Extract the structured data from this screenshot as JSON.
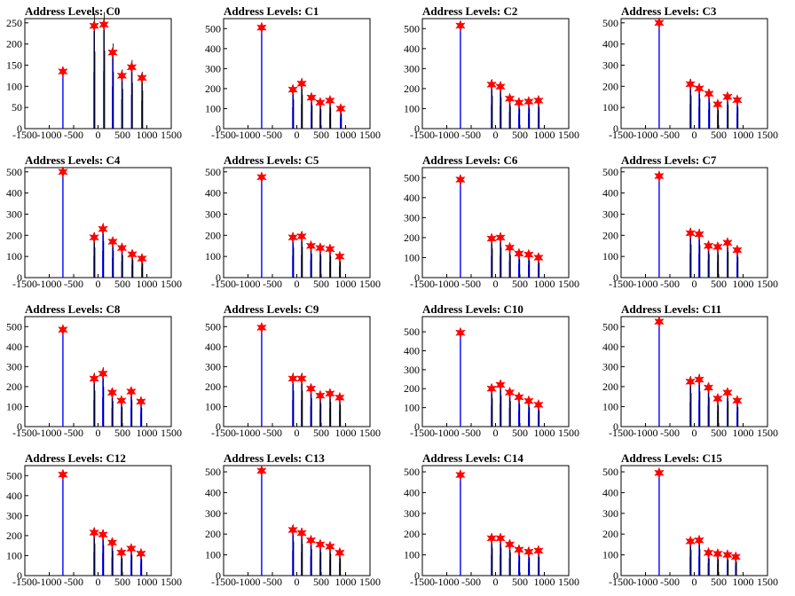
{
  "figure": {
    "background": "#ffffff",
    "colors": {
      "bar": "#0000ff",
      "trace": "#000000",
      "marker": "#ff0000",
      "axis": "#000000"
    },
    "marker_icon": "red-star-marker"
  },
  "chart_data": [
    {
      "type": "bar",
      "title": "Address Levels: C0",
      "xlim": [
        -1500,
        1500
      ],
      "ylim": [
        0,
        260
      ],
      "xticks": [
        -1500,
        -1000,
        -500,
        0,
        500,
        1000,
        1500
      ],
      "xtick_labels": [
        "-1500",
        "-1000",
        "-500",
        "0",
        "500",
        "1000",
        "1500"
      ],
      "yticks": [
        0,
        50,
        100,
        150,
        200,
        250
      ],
      "ytick_labels": [
        "0",
        "50",
        "100",
        "150",
        "200",
        "250"
      ],
      "peaks": [
        {
          "x": -720,
          "y": 135
        },
        {
          "x": -80,
          "y": 243
        },
        {
          "x": 120,
          "y": 246
        },
        {
          "x": 300,
          "y": 180
        },
        {
          "x": 490,
          "y": 125
        },
        {
          "x": 690,
          "y": 145
        },
        {
          "x": 900,
          "y": 120
        }
      ]
    },
    {
      "type": "bar",
      "title": "Address Levels: C1",
      "xlim": [
        -1500,
        1500
      ],
      "ylim": [
        0,
        550
      ],
      "xticks": [
        -1500,
        -1000,
        -500,
        0,
        500,
        1000,
        1500
      ],
      "xtick_labels": [
        "-1500",
        "-1000",
        "-500",
        "0",
        "500",
        "1000",
        "1500"
      ],
      "yticks": [
        0,
        100,
        200,
        300,
        400,
        500
      ],
      "ytick_labels": [
        "0",
        "100",
        "200",
        "300",
        "400",
        "500"
      ],
      "peaks": [
        {
          "x": -720,
          "y": 505
        },
        {
          "x": -80,
          "y": 195
        },
        {
          "x": 100,
          "y": 225
        },
        {
          "x": 300,
          "y": 155
        },
        {
          "x": 480,
          "y": 130
        },
        {
          "x": 680,
          "y": 140
        },
        {
          "x": 900,
          "y": 100
        }
      ]
    },
    {
      "type": "bar",
      "title": "Address Levels: C2",
      "xlim": [
        -1500,
        1500
      ],
      "ylim": [
        0,
        550
      ],
      "xticks": [
        -1500,
        -1000,
        -500,
        0,
        500,
        1000,
        1500
      ],
      "xtick_labels": [
        "-1500",
        "-1000",
        "-500",
        "0",
        "500",
        "1000",
        "1500"
      ],
      "yticks": [
        0,
        100,
        200,
        300,
        400,
        500
      ],
      "ytick_labels": [
        "0",
        "100",
        "200",
        "300",
        "400",
        "500"
      ],
      "peaks": [
        {
          "x": -720,
          "y": 515
        },
        {
          "x": -80,
          "y": 220
        },
        {
          "x": 100,
          "y": 210
        },
        {
          "x": 290,
          "y": 150
        },
        {
          "x": 480,
          "y": 130
        },
        {
          "x": 680,
          "y": 135
        },
        {
          "x": 880,
          "y": 140
        }
      ]
    },
    {
      "type": "bar",
      "title": "Address Levels: C3",
      "xlim": [
        -1500,
        1500
      ],
      "ylim": [
        0,
        520
      ],
      "xticks": [
        -1500,
        -1000,
        -500,
        0,
        500,
        1000,
        1500
      ],
      "xtick_labels": [
        "-1500",
        "-1000",
        "-500",
        "0",
        "500",
        "1000",
        "1500"
      ],
      "yticks": [
        0,
        100,
        200,
        300,
        400,
        500
      ],
      "ytick_labels": [
        "0",
        "100",
        "200",
        "300",
        "400",
        "500"
      ],
      "peaks": [
        {
          "x": -720,
          "y": 500
        },
        {
          "x": -80,
          "y": 210
        },
        {
          "x": 100,
          "y": 190
        },
        {
          "x": 300,
          "y": 165
        },
        {
          "x": 480,
          "y": 115
        },
        {
          "x": 680,
          "y": 150
        },
        {
          "x": 880,
          "y": 135
        }
      ]
    },
    {
      "type": "bar",
      "title": "Address Levels: C4",
      "xlim": [
        -1500,
        1500
      ],
      "ylim": [
        0,
        520
      ],
      "xticks": [
        -1500,
        -1000,
        -500,
        0,
        500,
        1000,
        1500
      ],
      "xtick_labels": [
        "-1500",
        "-1000",
        "-500",
        "0",
        "500",
        "1000",
        "1500"
      ],
      "yticks": [
        0,
        100,
        200,
        300,
        400,
        500
      ],
      "ytick_labels": [
        "0",
        "100",
        "200",
        "300",
        "400",
        "500"
      ],
      "peaks": [
        {
          "x": -720,
          "y": 500
        },
        {
          "x": -80,
          "y": 190
        },
        {
          "x": 100,
          "y": 230
        },
        {
          "x": 300,
          "y": 170
        },
        {
          "x": 490,
          "y": 140
        },
        {
          "x": 700,
          "y": 110
        },
        {
          "x": 900,
          "y": 90
        }
      ]
    },
    {
      "type": "bar",
      "title": "Address Levels: C5",
      "xlim": [
        -1500,
        1500
      ],
      "ylim": [
        0,
        520
      ],
      "xticks": [
        -1500,
        -1000,
        -500,
        0,
        500,
        1000,
        1500
      ],
      "xtick_labels": [
        "-1500",
        "-1000",
        "-500",
        "0",
        "500",
        "1000",
        "1500"
      ],
      "yticks": [
        0,
        100,
        200,
        300,
        400,
        500
      ],
      "ytick_labels": [
        "0",
        "100",
        "200",
        "300",
        "400",
        "500"
      ],
      "peaks": [
        {
          "x": -720,
          "y": 475
        },
        {
          "x": -80,
          "y": 190
        },
        {
          "x": 100,
          "y": 195
        },
        {
          "x": 290,
          "y": 150
        },
        {
          "x": 480,
          "y": 140
        },
        {
          "x": 680,
          "y": 135
        },
        {
          "x": 880,
          "y": 100
        }
      ]
    },
    {
      "type": "bar",
      "title": "Address Levels: C6",
      "xlim": [
        -1500,
        1500
      ],
      "ylim": [
        0,
        550
      ],
      "xticks": [
        -1500,
        -1000,
        -500,
        0,
        500,
        1000,
        1500
      ],
      "xtick_labels": [
        "-1500",
        "-1000",
        "-500",
        "0",
        "500",
        "1000",
        "1500"
      ],
      "yticks": [
        0,
        100,
        200,
        300,
        400,
        500
      ],
      "ytick_labels": [
        "0",
        "100",
        "200",
        "300",
        "400",
        "500"
      ],
      "peaks": [
        {
          "x": -720,
          "y": 490
        },
        {
          "x": -80,
          "y": 195
        },
        {
          "x": 100,
          "y": 200
        },
        {
          "x": 290,
          "y": 150
        },
        {
          "x": 480,
          "y": 120
        },
        {
          "x": 680,
          "y": 115
        },
        {
          "x": 880,
          "y": 100
        }
      ]
    },
    {
      "type": "bar",
      "title": "Address Levels: C7",
      "xlim": [
        -1500,
        1500
      ],
      "ylim": [
        0,
        520
      ],
      "xticks": [
        -1500,
        -1000,
        -500,
        0,
        500,
        1000,
        1500
      ],
      "xtick_labels": [
        "-1500",
        "-1000",
        "-500",
        "0",
        "500",
        "1000",
        "1500"
      ],
      "yticks": [
        0,
        100,
        200,
        300,
        400,
        500
      ],
      "ytick_labels": [
        "0",
        "100",
        "200",
        "300",
        "400",
        "500"
      ],
      "peaks": [
        {
          "x": -720,
          "y": 480
        },
        {
          "x": -80,
          "y": 210
        },
        {
          "x": 100,
          "y": 205
        },
        {
          "x": 290,
          "y": 150
        },
        {
          "x": 480,
          "y": 145
        },
        {
          "x": 680,
          "y": 165
        },
        {
          "x": 880,
          "y": 130
        }
      ]
    },
    {
      "type": "bar",
      "title": "Address Levels: C8",
      "xlim": [
        -1500,
        1500
      ],
      "ylim": [
        0,
        550
      ],
      "xticks": [
        -1500,
        -1000,
        -500,
        0,
        500,
        1000,
        1500
      ],
      "xtick_labels": [
        "-1500",
        "-1000",
        "-500",
        "0",
        "500",
        "1000",
        "1500"
      ],
      "yticks": [
        0,
        100,
        200,
        300,
        400,
        500
      ],
      "ytick_labels": [
        "0",
        "100",
        "200",
        "300",
        "400",
        "500"
      ],
      "peaks": [
        {
          "x": -720,
          "y": 485
        },
        {
          "x": -80,
          "y": 240
        },
        {
          "x": 100,
          "y": 265
        },
        {
          "x": 290,
          "y": 170
        },
        {
          "x": 480,
          "y": 130
        },
        {
          "x": 680,
          "y": 175
        },
        {
          "x": 880,
          "y": 125
        }
      ]
    },
    {
      "type": "bar",
      "title": "Address Levels: C9",
      "xlim": [
        -1500,
        1500
      ],
      "ylim": [
        0,
        550
      ],
      "xticks": [
        -1500,
        -1000,
        -500,
        0,
        500,
        1000,
        1500
      ],
      "xtick_labels": [
        "-1500",
        "-1000",
        "-500",
        "0",
        "500",
        "1000",
        "1500"
      ],
      "yticks": [
        0,
        100,
        200,
        300,
        400,
        500
      ],
      "ytick_labels": [
        "0",
        "100",
        "200",
        "300",
        "400",
        "500"
      ],
      "peaks": [
        {
          "x": -720,
          "y": 495
        },
        {
          "x": -80,
          "y": 240
        },
        {
          "x": 100,
          "y": 240
        },
        {
          "x": 290,
          "y": 190
        },
        {
          "x": 480,
          "y": 155
        },
        {
          "x": 680,
          "y": 165
        },
        {
          "x": 880,
          "y": 145
        }
      ]
    },
    {
      "type": "bar",
      "title": "Address Levels: C10",
      "xlim": [
        -1500,
        1500
      ],
      "ylim": [
        0,
        580
      ],
      "xticks": [
        -1500,
        -1000,
        -500,
        0,
        500,
        1000,
        1500
      ],
      "xtick_labels": [
        "-1500",
        "-1000",
        "-500",
        "0",
        "500",
        "1000",
        "1500"
      ],
      "yticks": [
        0,
        100,
        200,
        300,
        400,
        500
      ],
      "ytick_labels": [
        "0",
        "100",
        "200",
        "300",
        "400",
        "500"
      ],
      "peaks": [
        {
          "x": -720,
          "y": 495
        },
        {
          "x": -80,
          "y": 200
        },
        {
          "x": 100,
          "y": 220
        },
        {
          "x": 290,
          "y": 180
        },
        {
          "x": 480,
          "y": 155
        },
        {
          "x": 680,
          "y": 135
        },
        {
          "x": 880,
          "y": 115
        }
      ]
    },
    {
      "type": "bar",
      "title": "Address Levels: C11",
      "xlim": [
        -1500,
        1500
      ],
      "ylim": [
        0,
        550
      ],
      "xticks": [
        -1500,
        -1000,
        -500,
        0,
        500,
        1000,
        1500
      ],
      "xtick_labels": [
        "-1500",
        "-1000",
        "-500",
        "0",
        "500",
        "1000",
        "1500"
      ],
      "yticks": [
        0,
        100,
        200,
        300,
        400,
        500
      ],
      "ytick_labels": [
        "0",
        "100",
        "200",
        "300",
        "400",
        "500"
      ],
      "peaks": [
        {
          "x": -720,
          "y": 525
        },
        {
          "x": -80,
          "y": 225
        },
        {
          "x": 100,
          "y": 235
        },
        {
          "x": 290,
          "y": 195
        },
        {
          "x": 480,
          "y": 140
        },
        {
          "x": 680,
          "y": 170
        },
        {
          "x": 880,
          "y": 130
        }
      ]
    },
    {
      "type": "bar",
      "title": "Address Levels: C12",
      "xlim": [
        -1500,
        1500
      ],
      "ylim": [
        0,
        550
      ],
      "xticks": [
        -1500,
        -1000,
        -500,
        0,
        500,
        1000,
        1500
      ],
      "xtick_labels": [
        "-1500",
        "-1000",
        "-500",
        "0",
        "500",
        "1000",
        "1500"
      ],
      "yticks": [
        0,
        100,
        200,
        300,
        400,
        500
      ],
      "ytick_labels": [
        "0",
        "100",
        "200",
        "300",
        "400",
        "500"
      ],
      "peaks": [
        {
          "x": -720,
          "y": 505
        },
        {
          "x": -80,
          "y": 215
        },
        {
          "x": 100,
          "y": 205
        },
        {
          "x": 290,
          "y": 165
        },
        {
          "x": 480,
          "y": 115
        },
        {
          "x": 680,
          "y": 135
        },
        {
          "x": 880,
          "y": 110
        }
      ]
    },
    {
      "type": "bar",
      "title": "Address Levels: C13",
      "xlim": [
        -1500,
        1500
      ],
      "ylim": [
        0,
        530
      ],
      "xticks": [
        -1500,
        -1000,
        -500,
        0,
        500,
        1000,
        1500
      ],
      "xtick_labels": [
        "-1500",
        "-1000",
        "-500",
        "0",
        "500",
        "1000",
        "1500"
      ],
      "yticks": [
        0,
        100,
        200,
        300,
        400,
        500
      ],
      "ytick_labels": [
        "0",
        "100",
        "200",
        "300",
        "400",
        "500"
      ],
      "peaks": [
        {
          "x": -720,
          "y": 505
        },
        {
          "x": -80,
          "y": 220
        },
        {
          "x": 100,
          "y": 205
        },
        {
          "x": 290,
          "y": 170
        },
        {
          "x": 480,
          "y": 150
        },
        {
          "x": 680,
          "y": 140
        },
        {
          "x": 880,
          "y": 110
        }
      ]
    },
    {
      "type": "bar",
      "title": "Address Levels: C14",
      "xlim": [
        -1500,
        1500
      ],
      "ylim": [
        0,
        530
      ],
      "xticks": [
        -1500,
        -1000,
        -500,
        0,
        500,
        1000,
        1500
      ],
      "xtick_labels": [
        "-1500",
        "-1000",
        "-500",
        "0",
        "500",
        "1000",
        "1500"
      ],
      "yticks": [
        0,
        100,
        200,
        300,
        400,
        500
      ],
      "ytick_labels": [
        "0",
        "100",
        "200",
        "300",
        "400",
        "500"
      ],
      "peaks": [
        {
          "x": -720,
          "y": 485
        },
        {
          "x": -80,
          "y": 180
        },
        {
          "x": 100,
          "y": 180
        },
        {
          "x": 290,
          "y": 150
        },
        {
          "x": 480,
          "y": 125
        },
        {
          "x": 680,
          "y": 115
        },
        {
          "x": 880,
          "y": 120
        }
      ]
    },
    {
      "type": "bar",
      "title": "Address Levels: C15",
      "xlim": [
        -1500,
        1500
      ],
      "ylim": [
        0,
        530
      ],
      "xticks": [
        -1500,
        -1000,
        -500,
        0,
        500,
        1000,
        1500
      ],
      "xtick_labels": [
        "-1500",
        "-1000",
        "-500",
        "0",
        "500",
        "1000",
        "1500"
      ],
      "yticks": [
        0,
        100,
        200,
        300,
        400,
        500
      ],
      "ytick_labels": [
        "0",
        "100",
        "200",
        "300",
        "400",
        "500"
      ],
      "peaks": [
        {
          "x": -720,
          "y": 495
        },
        {
          "x": -80,
          "y": 165
        },
        {
          "x": 100,
          "y": 170
        },
        {
          "x": 290,
          "y": 110
        },
        {
          "x": 480,
          "y": 105
        },
        {
          "x": 680,
          "y": 100
        },
        {
          "x": 850,
          "y": 90
        }
      ]
    }
  ]
}
